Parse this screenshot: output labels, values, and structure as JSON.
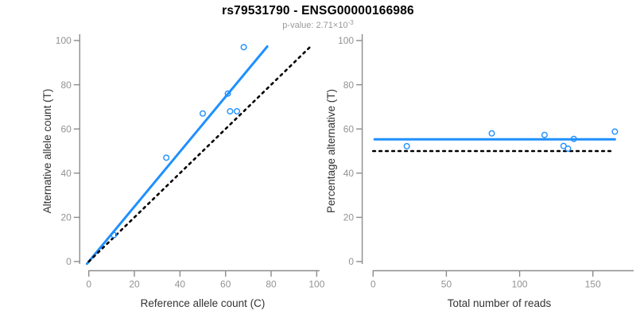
{
  "title": "rs79531790 - ENSG00000166986",
  "subtitle": {
    "prefix": "p-value: 2.71×10",
    "exponent": "-3"
  },
  "colors": {
    "accent_blue": "#1E90FF",
    "identity_line_black": "#000000",
    "axis_gray": "#8C8C8C",
    "tick_label_gray": "#939393",
    "axis_title_color": "#333333",
    "subtitle_gray": "#999999",
    "background": "#FFFFFF"
  },
  "chart_data": [
    {
      "type": "scatter",
      "panel": "left",
      "xlabel": "Reference allele count (C)",
      "ylabel": "Alternative allele count (T)",
      "xlim": [
        0,
        100
      ],
      "ylim": [
        0,
        100
      ],
      "xticks": [
        0,
        20,
        40,
        60,
        80,
        100
      ],
      "yticks": [
        0,
        20,
        40,
        60,
        80,
        100
      ],
      "grid": false,
      "legend": null,
      "points": [
        {
          "x": 11,
          "y": 12
        },
        {
          "x": 34,
          "y": 47
        },
        {
          "x": 50,
          "y": 67
        },
        {
          "x": 62,
          "y": 68
        },
        {
          "x": 65,
          "y": 68
        },
        {
          "x": 61,
          "y": 76
        },
        {
          "x": 68,
          "y": 97
        }
      ],
      "lines": [
        {
          "name": "fit-line",
          "style": "solid",
          "color": "#1E90FF",
          "x1": -0.8,
          "y1": -1.0,
          "x2": 78.3,
          "y2": 97.3
        },
        {
          "name": "identity-line",
          "style": "dotted",
          "color": "#000000",
          "x1": 0,
          "y1": 0,
          "x2": 96.8,
          "y2": 96.8
        }
      ]
    },
    {
      "type": "scatter",
      "panel": "right",
      "xlabel": "Total number of reads",
      "ylabel": "Percentage alternative (T)",
      "xlim": [
        0,
        176
      ],
      "ylim": [
        0,
        100
      ],
      "xticks": [
        0,
        50,
        100,
        150
      ],
      "yticks": [
        0,
        20,
        40,
        60,
        80,
        100
      ],
      "grid": false,
      "legend": null,
      "points": [
        {
          "x": 23,
          "y": 52.2
        },
        {
          "x": 81,
          "y": 58.0
        },
        {
          "x": 117,
          "y": 57.3
        },
        {
          "x": 130,
          "y": 52.3
        },
        {
          "x": 133,
          "y": 51.1
        },
        {
          "x": 137,
          "y": 55.5
        },
        {
          "x": 165,
          "y": 58.8
        }
      ],
      "lines": [
        {
          "name": "fit-line",
          "style": "solid",
          "color": "#1E90FF",
          "x1": 1,
          "y1": 55.3,
          "x2": 165,
          "y2": 55.3
        },
        {
          "name": "identity-line",
          "style": "dotted",
          "color": "#000000",
          "x1": 0,
          "y1": 50,
          "x2": 163,
          "y2": 50
        }
      ]
    }
  ]
}
